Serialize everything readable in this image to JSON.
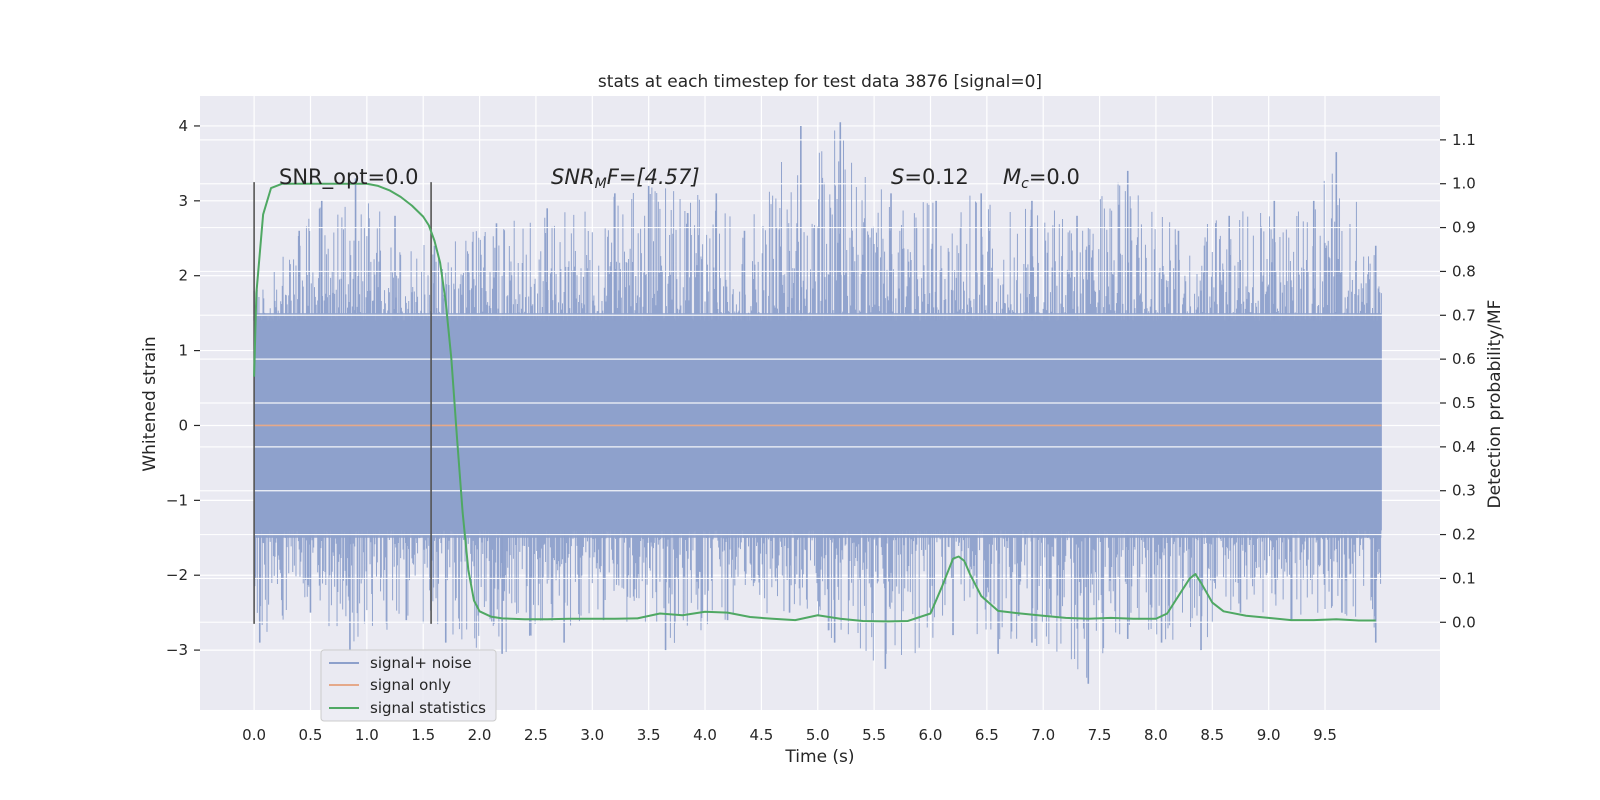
{
  "chart_data": {
    "type": "line",
    "title": "stats at each timestep for test data 3876 [signal=0]",
    "xlabel": "Time (s)",
    "ylabel_left": "Whitened strain",
    "ylabel_right": "Detection probability/MF",
    "xlim": [
      -0.48,
      10.52
    ],
    "ylim_left": [
      -3.8,
      4.4
    ],
    "ylim_right": [
      -0.2,
      1.2
    ],
    "x_ticks": [
      "0.0",
      "0.5",
      "1.0",
      "1.5",
      "2.0",
      "2.5",
      "3.0",
      "3.5",
      "4.0",
      "4.5",
      "5.0",
      "5.5",
      "6.0",
      "6.5",
      "7.0",
      "7.5",
      "8.0",
      "8.5",
      "9.0",
      "9.5"
    ],
    "y_ticks_left": [
      "4",
      "3",
      "2",
      "1",
      "0",
      "−1",
      "−2",
      "−3"
    ],
    "y_ticks_right": [
      "1.1",
      "1.0",
      "0.9",
      "0.8",
      "0.7",
      "0.6",
      "0.5",
      "0.4",
      "0.3",
      "0.2",
      "0.1",
      "0.0"
    ],
    "grid": true,
    "legend": {
      "placement": "lower-left",
      "entries": [
        {
          "label": "signal+ noise",
          "color": "#8da0cb"
        },
        {
          "label": "signal only",
          "color": "#e5a98a"
        },
        {
          "label": "signal statistics",
          "color": "#4fa863"
        }
      ]
    },
    "annotations": {
      "snr_opt": "SNR_opt=0.0",
      "snr_mf_name": "SNR",
      "snr_mf_sub": "M",
      "snr_mf_rest": "F=[4.57]",
      "s_name": "S",
      "s_rest": "=0.12",
      "mc_name": "M",
      "mc_sub": "c",
      "mc_rest": "=0.0"
    },
    "vertical_lines": [
      0.0,
      1.57
    ],
    "signal_noise": {
      "name": "signal+ noise",
      "color": "#8da0cb",
      "x_range": [
        0.0,
        10.0
      ],
      "core_band": [
        -1.5,
        1.5
      ],
      "peaks_max": [
        [
          0.0,
          1.8
        ],
        [
          0.4,
          2.6
        ],
        [
          0.6,
          3.0
        ],
        [
          0.9,
          3.3
        ],
        [
          1.25,
          2.8
        ],
        [
          1.6,
          2.4
        ],
        [
          2.15,
          2.7
        ],
        [
          2.6,
          2.9
        ],
        [
          3.2,
          3.1
        ],
        [
          3.5,
          3.2
        ],
        [
          4.1,
          3.1
        ],
        [
          4.35,
          2.6
        ],
        [
          4.85,
          4.0
        ],
        [
          5.2,
          4.05
        ],
        [
          5.65,
          3.1
        ],
        [
          6.05,
          3.0
        ],
        [
          6.45,
          3.1
        ],
        [
          6.9,
          3.0
        ],
        [
          7.3,
          2.8
        ],
        [
          7.75,
          3.4
        ],
        [
          8.2,
          2.6
        ],
        [
          8.65,
          2.8
        ],
        [
          9.05,
          3.0
        ],
        [
          9.4,
          3.0
        ],
        [
          9.6,
          3.65
        ],
        [
          9.95,
          2.4
        ]
      ],
      "peaks_min": [
        [
          0.05,
          -2.9
        ],
        [
          0.5,
          -2.5
        ],
        [
          0.85,
          -3.0
        ],
        [
          1.35,
          -2.6
        ],
        [
          1.7,
          -2.9
        ],
        [
          2.2,
          -3.05
        ],
        [
          2.75,
          -2.9
        ],
        [
          3.1,
          -2.6
        ],
        [
          3.65,
          -3.0
        ],
        [
          4.2,
          -2.6
        ],
        [
          4.75,
          -2.5
        ],
        [
          5.15,
          -2.9
        ],
        [
          5.6,
          -3.25
        ],
        [
          6.2,
          -2.8
        ],
        [
          6.6,
          -3.05
        ],
        [
          6.9,
          -2.9
        ],
        [
          7.4,
          -3.45
        ],
        [
          7.75,
          -2.85
        ],
        [
          8.05,
          -2.9
        ],
        [
          8.4,
          -3.0
        ],
        [
          8.75,
          -2.5
        ],
        [
          9.2,
          -2.6
        ],
        [
          9.65,
          -2.5
        ],
        [
          9.95,
          -2.9
        ]
      ]
    },
    "signal_only": {
      "name": "signal only",
      "color": "#e5a98a",
      "x": [
        0.0,
        10.0
      ],
      "y": [
        0.0,
        0.0
      ]
    },
    "signal_statistics": {
      "name": "signal statistics",
      "color": "#4fa863",
      "x": [
        0.0,
        0.02,
        0.08,
        0.15,
        0.25,
        0.4,
        0.6,
        0.8,
        1.0,
        1.1,
        1.2,
        1.3,
        1.4,
        1.5,
        1.55,
        1.6,
        1.65,
        1.7,
        1.75,
        1.8,
        1.85,
        1.9,
        1.95,
        2.0,
        2.1,
        2.2,
        2.4,
        2.6,
        2.8,
        3.0,
        3.2,
        3.4,
        3.6,
        3.8,
        4.0,
        4.2,
        4.4,
        4.6,
        4.8,
        5.0,
        5.2,
        5.4,
        5.6,
        5.8,
        6.0,
        6.1,
        6.2,
        6.25,
        6.3,
        6.35,
        6.45,
        6.6,
        6.8,
        7.0,
        7.2,
        7.4,
        7.6,
        7.8,
        8.0,
        8.1,
        8.2,
        8.3,
        8.35,
        8.4,
        8.5,
        8.6,
        8.8,
        9.0,
        9.2,
        9.4,
        9.6,
        9.8,
        9.95
      ],
      "y": [
        0.56,
        0.75,
        0.93,
        0.99,
        1.0,
        1.0,
        1.0,
        1.0,
        1.0,
        0.995,
        0.985,
        0.97,
        0.95,
        0.925,
        0.905,
        0.87,
        0.82,
        0.73,
        0.6,
        0.42,
        0.25,
        0.12,
        0.05,
        0.025,
        0.013,
        0.009,
        0.007,
        0.007,
        0.008,
        0.008,
        0.008,
        0.009,
        0.02,
        0.016,
        0.024,
        0.022,
        0.012,
        0.008,
        0.005,
        0.016,
        0.008,
        0.003,
        0.002,
        0.003,
        0.02,
        0.08,
        0.145,
        0.15,
        0.14,
        0.11,
        0.06,
        0.026,
        0.02,
        0.015,
        0.01,
        0.008,
        0.01,
        0.008,
        0.008,
        0.02,
        0.06,
        0.1,
        0.11,
        0.09,
        0.045,
        0.025,
        0.015,
        0.01,
        0.005,
        0.005,
        0.007,
        0.004,
        0.004
      ]
    }
  }
}
